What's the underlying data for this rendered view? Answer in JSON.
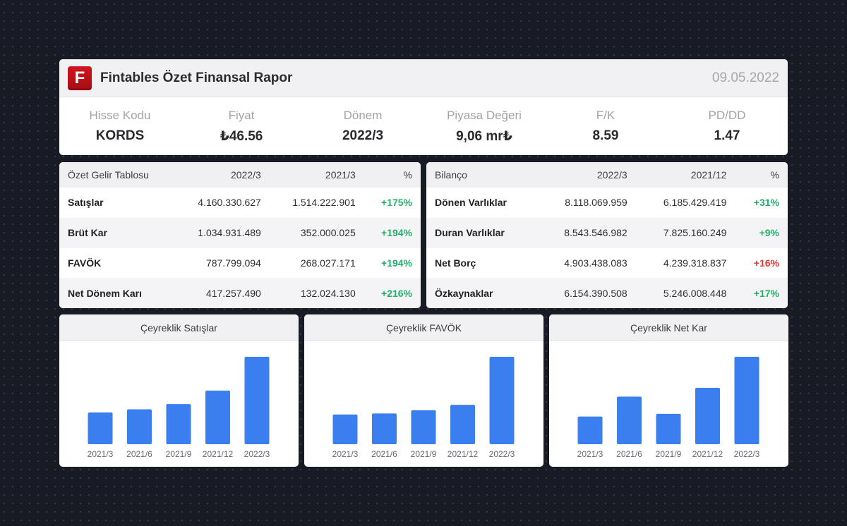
{
  "header": {
    "logo_letter": "F",
    "title": "Fintables Özet Finansal Rapor",
    "date": "09.05.2022"
  },
  "metrics": [
    {
      "label": "Hisse Kodu",
      "value": "KORDS"
    },
    {
      "label": "Fiyat",
      "value": "₺46.56"
    },
    {
      "label": "Dönem",
      "value": "2022/3"
    },
    {
      "label": "Piyasa Değeri",
      "value": "9,06 mr₺"
    },
    {
      "label": "F/K",
      "value": "8.59"
    },
    {
      "label": "PD/DD",
      "value": "1.47"
    }
  ],
  "income": {
    "headers": [
      "Özet Gelir Tablosu",
      "2022/3",
      "2021/3",
      "%"
    ],
    "rows": [
      {
        "name": "Satışlar",
        "a": "4.160.330.627",
        "b": "1.514.222.901",
        "pct": "+175%",
        "dir": "pos"
      },
      {
        "name": "Brüt Kar",
        "a": "1.034.931.489",
        "b": "352.000.025",
        "pct": "+194%",
        "dir": "pos"
      },
      {
        "name": "FAVÖK",
        "a": "787.799.094",
        "b": "268.027.171",
        "pct": "+194%",
        "dir": "pos"
      },
      {
        "name": "Net Dönem Karı",
        "a": "417.257.490",
        "b": "132.024.130",
        "pct": "+216%",
        "dir": "pos"
      }
    ]
  },
  "balance": {
    "headers": [
      "Bilanço",
      "2022/3",
      "2021/12",
      "%"
    ],
    "rows": [
      {
        "name": "Dönen Varlıklar",
        "a": "8.118.069.959",
        "b": "6.185.429.419",
        "pct": "+31%",
        "dir": "pos"
      },
      {
        "name": "Duran Varlıklar",
        "a": "8.543.546.982",
        "b": "7.825.160.249",
        "pct": "+9%",
        "dir": "pos"
      },
      {
        "name": "Net Borç",
        "a": "4.903.438.083",
        "b": "4.239.318.837",
        "pct": "+16%",
        "dir": "neg"
      },
      {
        "name": "Özkaynaklar",
        "a": "6.154.390.508",
        "b": "5.246.008.448",
        "pct": "+17%",
        "dir": "pos"
      }
    ]
  },
  "colors": {
    "bar": "#3b7ef0",
    "positive": "#22b06a",
    "negative": "#e53935",
    "logo": "#c8101a"
  },
  "chart_data": [
    {
      "type": "bar",
      "title": "Çeyreklik Satışlar",
      "categories": [
        "2021/3",
        "2021/6",
        "2021/9",
        "2021/12",
        "2022/3"
      ],
      "values": [
        1.51,
        1.66,
        1.91,
        2.55,
        4.16
      ]
    },
    {
      "type": "bar",
      "title": "Çeyreklik FAVÖK",
      "categories": [
        "2021/3",
        "2021/6",
        "2021/9",
        "2021/12",
        "2022/3"
      ],
      "values": [
        0.268,
        0.277,
        0.307,
        0.355,
        0.788
      ]
    },
    {
      "type": "bar",
      "title": "Çeyreklik Net Kar",
      "categories": [
        "2021/3",
        "2021/6",
        "2021/9",
        "2021/12",
        "2022/3"
      ],
      "values": [
        0.132,
        0.227,
        0.145,
        0.269,
        0.417
      ]
    }
  ]
}
